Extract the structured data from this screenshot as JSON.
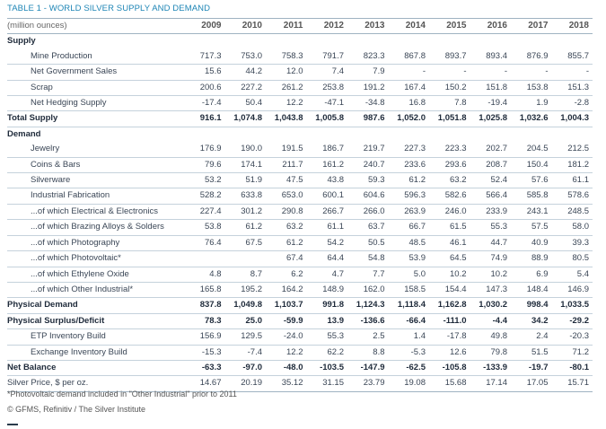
{
  "title": "TABLE 1 - WORLD SILVER SUPPLY AND DEMAND",
  "unit_label": "(million ounces)",
  "years": [
    "2009",
    "2010",
    "2011",
    "2012",
    "2013",
    "2014",
    "2015",
    "2016",
    "2017",
    "2018"
  ],
  "sections": {
    "supply": "Supply",
    "demand": "Demand"
  },
  "rows": {
    "mine_production": {
      "label": "Mine Production",
      "values": [
        "717.3",
        "753.0",
        "758.3",
        "791.7",
        "823.3",
        "867.8",
        "893.7",
        "893.4",
        "876.9",
        "855.7"
      ]
    },
    "net_government_sales": {
      "label": "Net Government Sales",
      "values": [
        "15.6",
        "44.2",
        "12.0",
        "7.4",
        "7.9",
        "-",
        "-",
        "-",
        "-",
        "-"
      ]
    },
    "scrap": {
      "label": "Scrap",
      "values": [
        "200.6",
        "227.2",
        "261.2",
        "253.8",
        "191.2",
        "167.4",
        "150.2",
        "151.8",
        "153.8",
        "151.3"
      ]
    },
    "net_hedging_supply": {
      "label": "Net Hedging Supply",
      "values": [
        "-17.4",
        "50.4",
        "12.2",
        "-47.1",
        "-34.8",
        "16.8",
        "7.8",
        "-19.4",
        "1.9",
        "-2.8"
      ]
    },
    "total_supply": {
      "label": "Total Supply",
      "values": [
        "916.1",
        "1,074.8",
        "1,043.8",
        "1,005.8",
        "987.6",
        "1,052.0",
        "1,051.8",
        "1,025.8",
        "1,032.6",
        "1,004.3"
      ]
    },
    "jewelry": {
      "label": "Jewelry",
      "values": [
        "176.9",
        "190.0",
        "191.5",
        "186.7",
        "219.7",
        "227.3",
        "223.3",
        "202.7",
        "204.5",
        "212.5"
      ]
    },
    "coins_bars": {
      "label": "Coins & Bars",
      "values": [
        "79.6",
        "174.1",
        "211.7",
        "161.2",
        "240.7",
        "233.6",
        "293.6",
        "208.7",
        "150.4",
        "181.2"
      ]
    },
    "silverware": {
      "label": "Silverware",
      "values": [
        "53.2",
        "51.9",
        "47.5",
        "43.8",
        "59.3",
        "61.2",
        "63.2",
        "52.4",
        "57.6",
        "61.1"
      ]
    },
    "industrial_fabrication": {
      "label": "Industrial Fabrication",
      "values": [
        "528.2",
        "633.8",
        "653.0",
        "600.1",
        "604.6",
        "596.3",
        "582.6",
        "566.4",
        "585.8",
        "578.6"
      ]
    },
    "electrical": {
      "label": "...of which Electrical & Electronics",
      "values": [
        "227.4",
        "301.2",
        "290.8",
        "266.7",
        "266.0",
        "263.9",
        "246.0",
        "233.9",
        "243.1",
        "248.5"
      ]
    },
    "brazing": {
      "label": "...of which Brazing Alloys & Solders",
      "values": [
        "53.8",
        "61.2",
        "63.2",
        "61.1",
        "63.7",
        "66.7",
        "61.5",
        "55.3",
        "57.5",
        "58.0"
      ]
    },
    "photography": {
      "label": "...of which Photography",
      "values": [
        "76.4",
        "67.5",
        "61.2",
        "54.2",
        "50.5",
        "48.5",
        "46.1",
        "44.7",
        "40.9",
        "39.3"
      ]
    },
    "photovoltaic": {
      "label": "...of which Photovoltaic*",
      "values": [
        "",
        "",
        "67.4",
        "64.4",
        "54.8",
        "53.9",
        "64.5",
        "74.9",
        "88.9",
        "80.5"
      ]
    },
    "ethylene_oxide": {
      "label": "...of which Ethylene Oxide",
      "values": [
        "4.8",
        "8.7",
        "6.2",
        "4.7",
        "7.7",
        "5.0",
        "10.2",
        "10.2",
        "6.9",
        "5.4"
      ]
    },
    "other_industrial": {
      "label": "...of which Other Industrial*",
      "values": [
        "165.8",
        "195.2",
        "164.2",
        "148.9",
        "162.0",
        "158.5",
        "154.4",
        "147.3",
        "148.4",
        "146.9"
      ]
    },
    "physical_demand": {
      "label": "Physical Demand",
      "values": [
        "837.8",
        "1,049.8",
        "1,103.7",
        "991.8",
        "1,124.3",
        "1,118.4",
        "1,162.8",
        "1,030.2",
        "998.4",
        "1,033.5"
      ]
    },
    "physical_surplus": {
      "label": "Physical Surplus/Deficit",
      "values": [
        "78.3",
        "25.0",
        "-59.9",
        "13.9",
        "-136.6",
        "-66.4",
        "-111.0",
        "-4.4",
        "34.2",
        "-29.2"
      ]
    },
    "etp_build": {
      "label": "ETP Inventory Build",
      "values": [
        "156.9",
        "129.5",
        "-24.0",
        "55.3",
        "2.5",
        "1.4",
        "-17.8",
        "49.8",
        "2.4",
        "-20.3"
      ]
    },
    "exchange_build": {
      "label": "Exchange Inventory Build",
      "values": [
        "-15.3",
        "-7.4",
        "12.2",
        "62.2",
        "8.8",
        "-5.3",
        "12.6",
        "79.8",
        "51.5",
        "71.2"
      ]
    },
    "net_balance": {
      "label": "Net Balance",
      "values": [
        "-63.3",
        "-97.0",
        "-48.0",
        "-103.5",
        "-147.9",
        "-62.5",
        "-105.8",
        "-133.9",
        "-19.7",
        "-80.1"
      ]
    },
    "silver_price": {
      "label": "Silver Price, $ per oz.",
      "values": [
        "14.67",
        "20.19",
        "35.12",
        "31.15",
        "23.79",
        "19.08",
        "15.68",
        "17.14",
        "17.05",
        "15.71"
      ]
    }
  },
  "footnote": "*Photovoltaic demand included in \"Other Industrial\" prior to 2011",
  "source": "© GFMS, Refinitiv / The Silver Institute"
}
